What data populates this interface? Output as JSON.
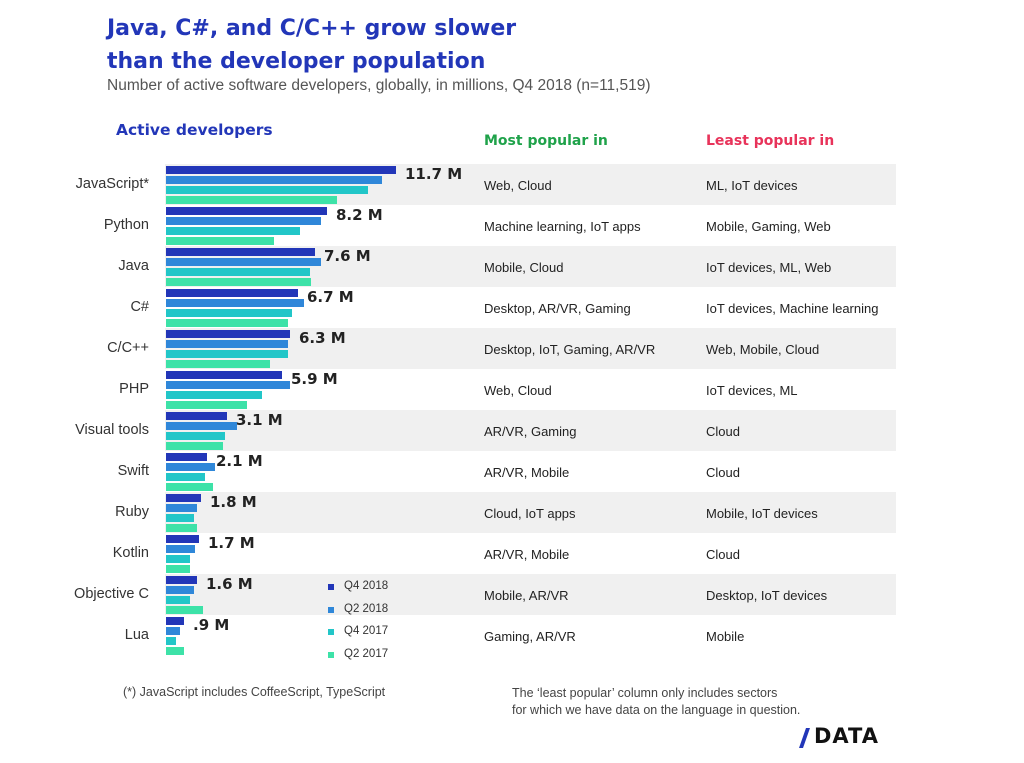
{
  "header": {
    "title_line1": "Java, C#, and C/C++ grow slower",
    "title_line2": "than the developer population",
    "subtitle": "Number of active software developers, globally, in millions, Q4 2018 (n=11,519)"
  },
  "columns": {
    "active": "Active developers",
    "most": "Most popular in",
    "least": "Least popular in"
  },
  "legend": [
    {
      "label": "Q4 2018",
      "color": "#2236b8"
    },
    {
      "label": "Q2 2018",
      "color": "#2f87d9"
    },
    {
      "label": "Q4 2017",
      "color": "#22c6c8"
    },
    {
      "label": "Q2 2017",
      "color": "#3de2a8"
    }
  ],
  "chart_data": {
    "type": "bar",
    "orientation": "horizontal",
    "title": "Java, C#, and C/C++ grow slower than the developer population",
    "subtitle": "Number of active software developers, globally, in millions, Q4 2018 (n=11,519)",
    "unit": "M",
    "categories": [
      "JavaScript*",
      "Python",
      "Java",
      "C#",
      "C/C++",
      "PHP",
      "Visual tools",
      "Swift",
      "Ruby",
      "Kotlin",
      "Objective C",
      "Lua"
    ],
    "value_labels": [
      "11.7 M",
      "8.2 M",
      "7.6 M",
      "6.7 M",
      "6.3 M",
      "5.9 M",
      "3.1 M",
      "2.1 M",
      "1.8 M",
      "1.7 M",
      "1.6 M",
      ".9 M"
    ],
    "series": [
      {
        "name": "Q4 2018",
        "values": [
          11.7,
          8.2,
          7.6,
          6.7,
          6.3,
          5.9,
          3.1,
          2.1,
          1.8,
          1.7,
          1.6,
          0.9
        ]
      },
      {
        "name": "Q2 2018",
        "values": [
          11.0,
          7.9,
          7.9,
          7.0,
          6.2,
          6.3,
          3.6,
          2.5,
          1.6,
          1.5,
          1.4,
          0.7
        ]
      },
      {
        "name": "Q4 2017",
        "values": [
          10.3,
          6.8,
          7.3,
          6.4,
          6.2,
          4.9,
          3.0,
          2.0,
          1.4,
          1.2,
          1.2,
          0.5
        ]
      },
      {
        "name": "Q2 2017",
        "values": [
          8.7,
          5.5,
          7.4,
          6.2,
          5.3,
          4.1,
          2.9,
          2.4,
          1.6,
          1.2,
          1.9,
          0.9
        ]
      }
    ],
    "xlim": [
      0,
      13.5
    ],
    "most_popular": [
      "Web, Cloud",
      "Machine learning, IoT apps",
      "Mobile, Cloud",
      "Desktop, AR/VR, Gaming",
      "Desktop, IoT, Gaming, AR/VR",
      "Web, Cloud",
      "AR/VR, Gaming",
      "AR/VR, Mobile",
      "Cloud, IoT apps",
      "AR/VR, Mobile",
      "Mobile, AR/VR",
      "Gaming, AR/VR"
    ],
    "least_popular": [
      "ML, IoT devices",
      "Mobile, Gaming, Web",
      "IoT devices, ML, Web",
      "IoT devices, Machine learning",
      "Web, Mobile, Cloud",
      "IoT devices, ML",
      "Cloud",
      "Cloud",
      "Mobile, IoT devices",
      "Cloud",
      "Desktop, IoT devices",
      "Mobile"
    ]
  },
  "footer": {
    "note_left": "(*) JavaScript includes CoffeeScript, TypeScript",
    "note_right_line1": "The ‘least popular’ column only includes sectors",
    "note_right_line2": "for which we have data on the language in question."
  },
  "logo": {
    "text": "DATA"
  }
}
